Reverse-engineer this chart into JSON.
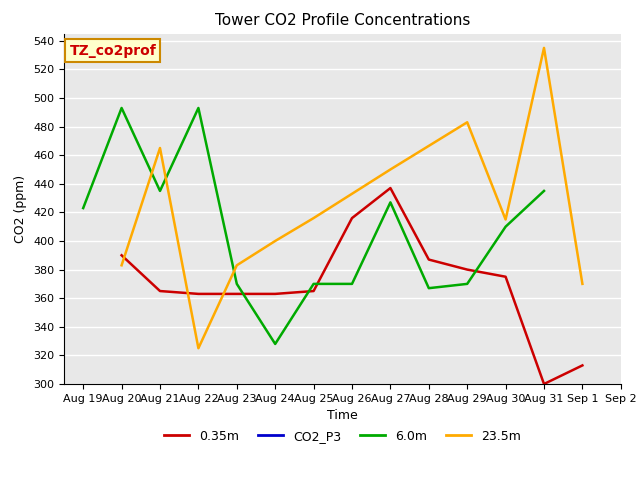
{
  "title": "Tower CO2 Profile Concentrations",
  "xlabel": "Time",
  "ylabel": "CO2 (ppm)",
  "ylim": [
    300,
    545
  ],
  "yticks": [
    300,
    320,
    340,
    360,
    380,
    400,
    420,
    440,
    460,
    480,
    500,
    520,
    540
  ],
  "x_labels": [
    "Aug 19",
    "Aug 20",
    "Aug 21",
    "Aug 22",
    "Aug 23",
    "Aug 24",
    "Aug 25",
    "Aug 26",
    "Aug 27",
    "Aug 28",
    "Aug 29",
    "Aug 30",
    "Aug 31",
    "Sep 1",
    "Sep 2"
  ],
  "series": {
    "0.35m": {
      "color": "#cc0000",
      "x": [
        1,
        2,
        3,
        4,
        5,
        6,
        7,
        8,
        9,
        10,
        11,
        12,
        13,
        14
      ],
      "y": [
        390,
        365,
        363,
        363,
        363,
        365,
        416,
        437,
        387,
        380,
        375,
        300,
        313,
        null
      ]
    },
    "CO2_P3": {
      "color": "#0000cc",
      "x": [],
      "y": []
    },
    "6.0m": {
      "color": "#00aa00",
      "x": [
        0,
        1,
        2,
        3,
        4,
        5,
        6,
        7,
        8,
        9,
        10,
        11,
        12
      ],
      "y": [
        423,
        493,
        435,
        493,
        370,
        328,
        370,
        370,
        427,
        367,
        370,
        410,
        435
      ]
    },
    "23.5m": {
      "color": "#ffaa00",
      "x": [
        1,
        2,
        3,
        4,
        5,
        6,
        7,
        8,
        10,
        11,
        12,
        13
      ],
      "y": [
        383,
        465,
        325,
        383,
        400,
        416,
        433,
        450,
        483,
        415,
        535,
        370
      ]
    }
  },
  "annotation_text": "TZ_co2prof",
  "annotation_color": "#cc0000",
  "annotation_bg": "#ffffcc",
  "annotation_border": "#cc8800",
  "bg_color": "#e8e8e8",
  "grid_color": "#ffffff",
  "title_fontsize": 11,
  "axis_fontsize": 9,
  "tick_fontsize": 8,
  "legend_fontsize": 9,
  "line_width": 1.8
}
